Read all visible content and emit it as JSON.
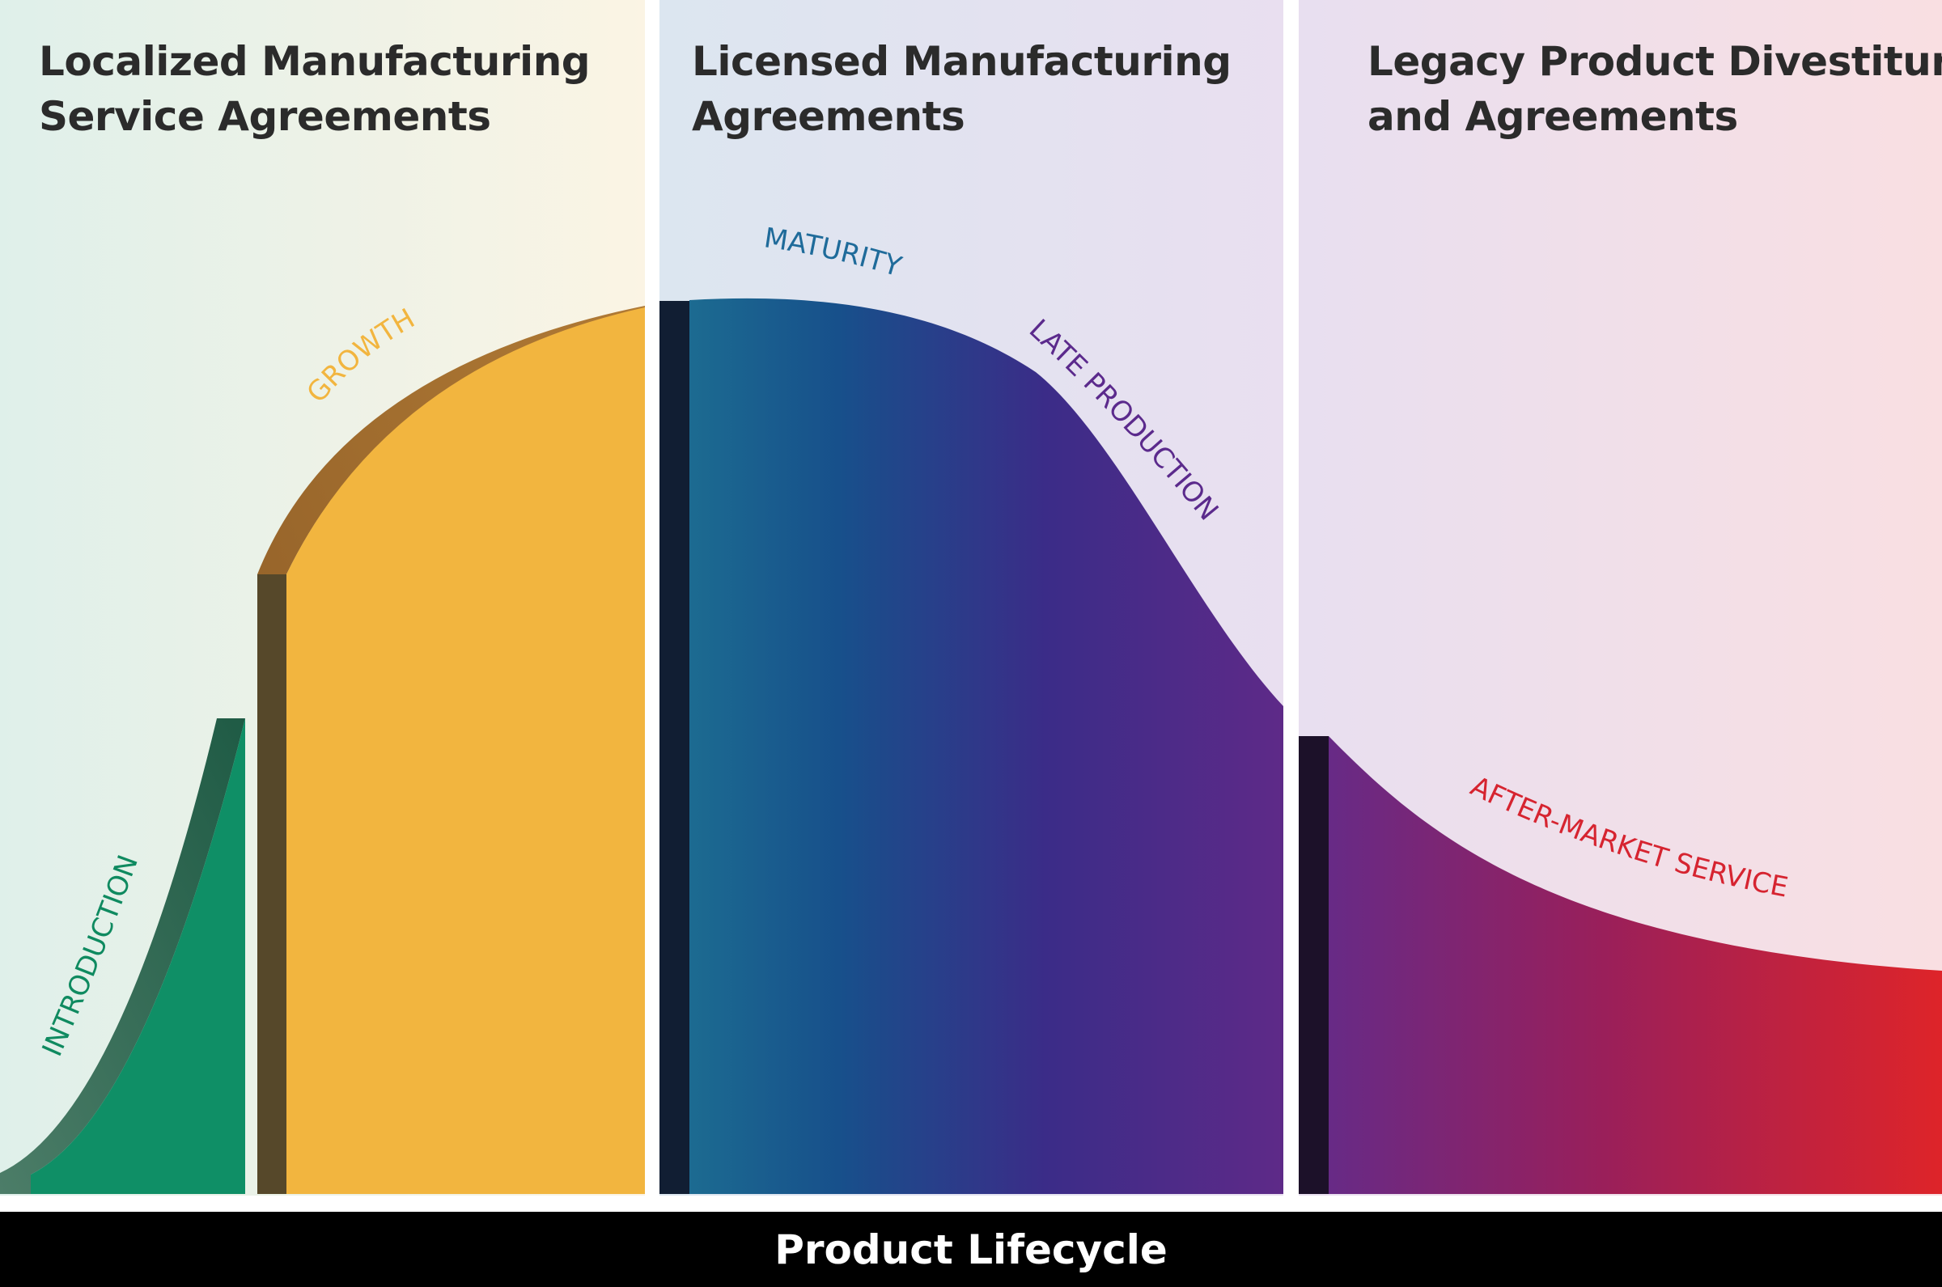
{
  "sections": [
    {
      "title_lines": [
        "Localized Manufacturing",
        "Service Agreements"
      ]
    },
    {
      "title_lines": [
        "Licensed Manufacturing",
        "Agreements"
      ]
    },
    {
      "title_lines": [
        "Legacy Product Divestitures",
        "and Agreements"
      ]
    }
  ],
  "phases": {
    "introduction": {
      "label": "INTRODUCTION",
      "color": "#0f8a60"
    },
    "growth": {
      "label": "GROWTH",
      "color": "#f2b53f"
    },
    "maturity": {
      "label": "MATURITY",
      "color": "#1f6b9a"
    },
    "late_production": {
      "label": "LATE PRODUCTION",
      "color": "#5b2a8c"
    },
    "after_market": {
      "label": "AFTER-MARKET SERVICE",
      "color": "#d62430"
    }
  },
  "footer": {
    "label": "Product Lifecycle"
  },
  "colors": {
    "panel1_start": "#dff0ea",
    "panel1_end": "#fbf4e4",
    "panel2_start": "#dce6f0",
    "panel2_end": "#e8dff0",
    "panel3_start": "#e8dff0",
    "panel3_end": "#f9dfe2",
    "footer_bg": "#000000"
  }
}
